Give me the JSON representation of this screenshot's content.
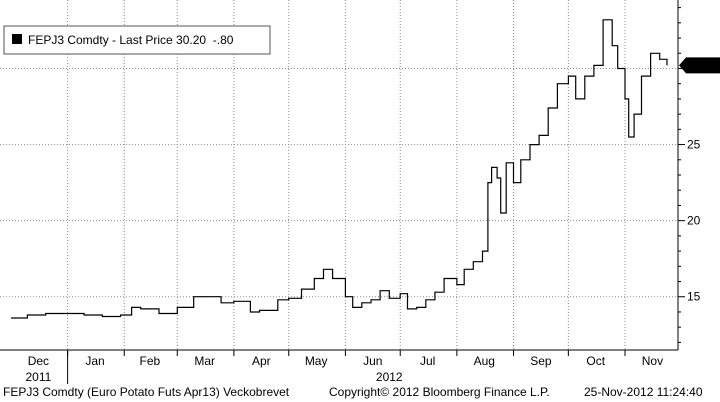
{
  "legend": {
    "swatch_color": "#000000",
    "label": "FEPJ3 Comdty - Last Price 30.20  -.80"
  },
  "last_price_label": "30.20",
  "footer": {
    "left": "FEPJ3 Comdty (Euro Potato Futs  Apr13) Veckobrevet",
    "center": "Copyright© 2012 Bloomberg Finance L.P.",
    "right": "25-Nov-2012 11:24:40"
  },
  "chart_data": {
    "type": "line",
    "ylim": [
      11.5,
      34.5
    ],
    "grid": true,
    "y_ticks": [
      15,
      20,
      25
    ],
    "x_ticks": [
      {
        "label": "Dec",
        "date": "2011-12-16"
      },
      {
        "label": "Jan",
        "date": "2012-01-16"
      },
      {
        "label": "Feb",
        "date": "2012-02-15"
      },
      {
        "label": "Mar",
        "date": "2012-03-16"
      },
      {
        "label": "Apr",
        "date": "2012-04-16"
      },
      {
        "label": "May",
        "date": "2012-05-16"
      },
      {
        "label": "Jun",
        "date": "2012-06-16"
      },
      {
        "label": "Jul",
        "date": "2012-07-16"
      },
      {
        "label": "Aug",
        "date": "2012-08-16"
      },
      {
        "label": "Sep",
        "date": "2012-09-16"
      },
      {
        "label": "Oct",
        "date": "2012-10-16"
      },
      {
        "label": "Nov",
        "date": "2012-11-16"
      }
    ],
    "year_labels": [
      {
        "label": "2011",
        "date": "2011-12-16"
      },
      {
        "label": "2012",
        "date": "2012-06-25"
      }
    ],
    "vertical_gridlines": [
      "2012-01-01",
      "2012-02-01",
      "2012-03-01",
      "2012-04-01",
      "2012-05-01",
      "2012-06-01",
      "2012-07-01",
      "2012-08-01",
      "2012-09-01",
      "2012-10-01",
      "2012-11-01"
    ],
    "series": [
      {
        "color": "#000000",
        "x": [
          "2011-12-01",
          "2011-12-10",
          "2011-12-20",
          "2012-01-01",
          "2012-01-10",
          "2012-01-20",
          "2012-01-30",
          "2012-02-05",
          "2012-02-10",
          "2012-02-20",
          "2012-03-01",
          "2012-03-10",
          "2012-03-20",
          "2012-03-25",
          "2012-04-01",
          "2012-04-10",
          "2012-04-15",
          "2012-04-25",
          "2012-05-01",
          "2012-05-08",
          "2012-05-15",
          "2012-05-20",
          "2012-05-25",
          "2012-06-01",
          "2012-06-05",
          "2012-06-10",
          "2012-06-15",
          "2012-06-20",
          "2012-06-25",
          "2012-07-01",
          "2012-07-05",
          "2012-07-10",
          "2012-07-15",
          "2012-07-20",
          "2012-07-25",
          "2012-08-01",
          "2012-08-05",
          "2012-08-10",
          "2012-08-15",
          "2012-08-18",
          "2012-08-20",
          "2012-08-23",
          "2012-08-25",
          "2012-08-28",
          "2012-09-01",
          "2012-09-05",
          "2012-09-10",
          "2012-09-15",
          "2012-09-20",
          "2012-09-25",
          "2012-10-01",
          "2012-10-05",
          "2012-10-10",
          "2012-10-15",
          "2012-10-20",
          "2012-10-25",
          "2012-10-28",
          "2012-11-01",
          "2012-11-03",
          "2012-11-06",
          "2012-11-10",
          "2012-11-15",
          "2012-11-20",
          "2012-11-24"
        ],
        "y": [
          13.6,
          13.8,
          13.9,
          13.9,
          13.8,
          13.7,
          13.8,
          14.3,
          14.2,
          13.9,
          14.3,
          15.0,
          15.0,
          14.6,
          14.7,
          14.0,
          14.1,
          14.8,
          14.9,
          15.5,
          16.2,
          16.8,
          16.2,
          15.0,
          14.3,
          14.6,
          14.8,
          15.4,
          14.9,
          15.2,
          14.2,
          14.3,
          14.8,
          15.3,
          16.2,
          15.8,
          16.8,
          17.3,
          18.0,
          22.5,
          23.5,
          22.8,
          20.5,
          23.8,
          22.5,
          24.0,
          25.0,
          25.6,
          27.4,
          29.0,
          29.5,
          28.0,
          29.5,
          30.2,
          33.2,
          31.5,
          30.0,
          28.0,
          25.5,
          27.0,
          29.5,
          31.0,
          30.6,
          30.2
        ]
      }
    ]
  }
}
